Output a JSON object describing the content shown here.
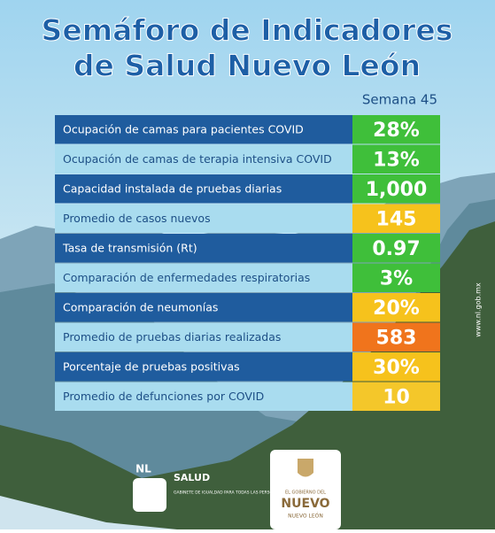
{
  "header": {
    "title_lines": [
      "Semáforo de Indicadores",
      "de Salud Nuevo León"
    ],
    "week": "Semana 45"
  },
  "table": {
    "rows": [
      {
        "label": "Ocupación de camas para pacientes COVID",
        "value": "28%",
        "color": "#3fbf3a"
      },
      {
        "label": "Ocupación de camas de terapia intensiva COVID",
        "value": "13%",
        "color": "#3fbf3a"
      },
      {
        "label": "Capacidad instalada de pruebas diarias",
        "value": "1,000",
        "color": "#3fbf3a"
      },
      {
        "label": "Promedio de casos nuevos",
        "value": "145",
        "color": "#f6c21c"
      },
      {
        "label": "Tasa de transmisión (Rt)",
        "value": "0.97",
        "color": "#3fbf3a"
      },
      {
        "label": "Comparación de enfermedades respiratorias",
        "value": "3%",
        "color": "#3fbf3a"
      },
      {
        "label": "Comparación de neumonías",
        "value": "20%",
        "color": "#f6c21c"
      },
      {
        "label": "Promedio de pruebas diarias realizadas",
        "value": "583",
        "color": "#f0741c"
      },
      {
        "label": "Porcentaje de pruebas positivas",
        "value": "30%",
        "color": "#f6c21c"
      },
      {
        "label": "Promedio de defunciones por COVID",
        "value": "10",
        "color": "#f4c72a"
      }
    ]
  },
  "footer": {
    "left_logo": "NL",
    "left_title": "SALUD",
    "left_subtitle": "GABINETE DE IGUALDAD PARA TODAS LAS PERSONAS",
    "right_line1": "EL GOBIERNO DEL",
    "right_line2": "NUEVO",
    "right_line3": "NUEVO LEÓN",
    "website": "www.nl.gob.mx"
  }
}
